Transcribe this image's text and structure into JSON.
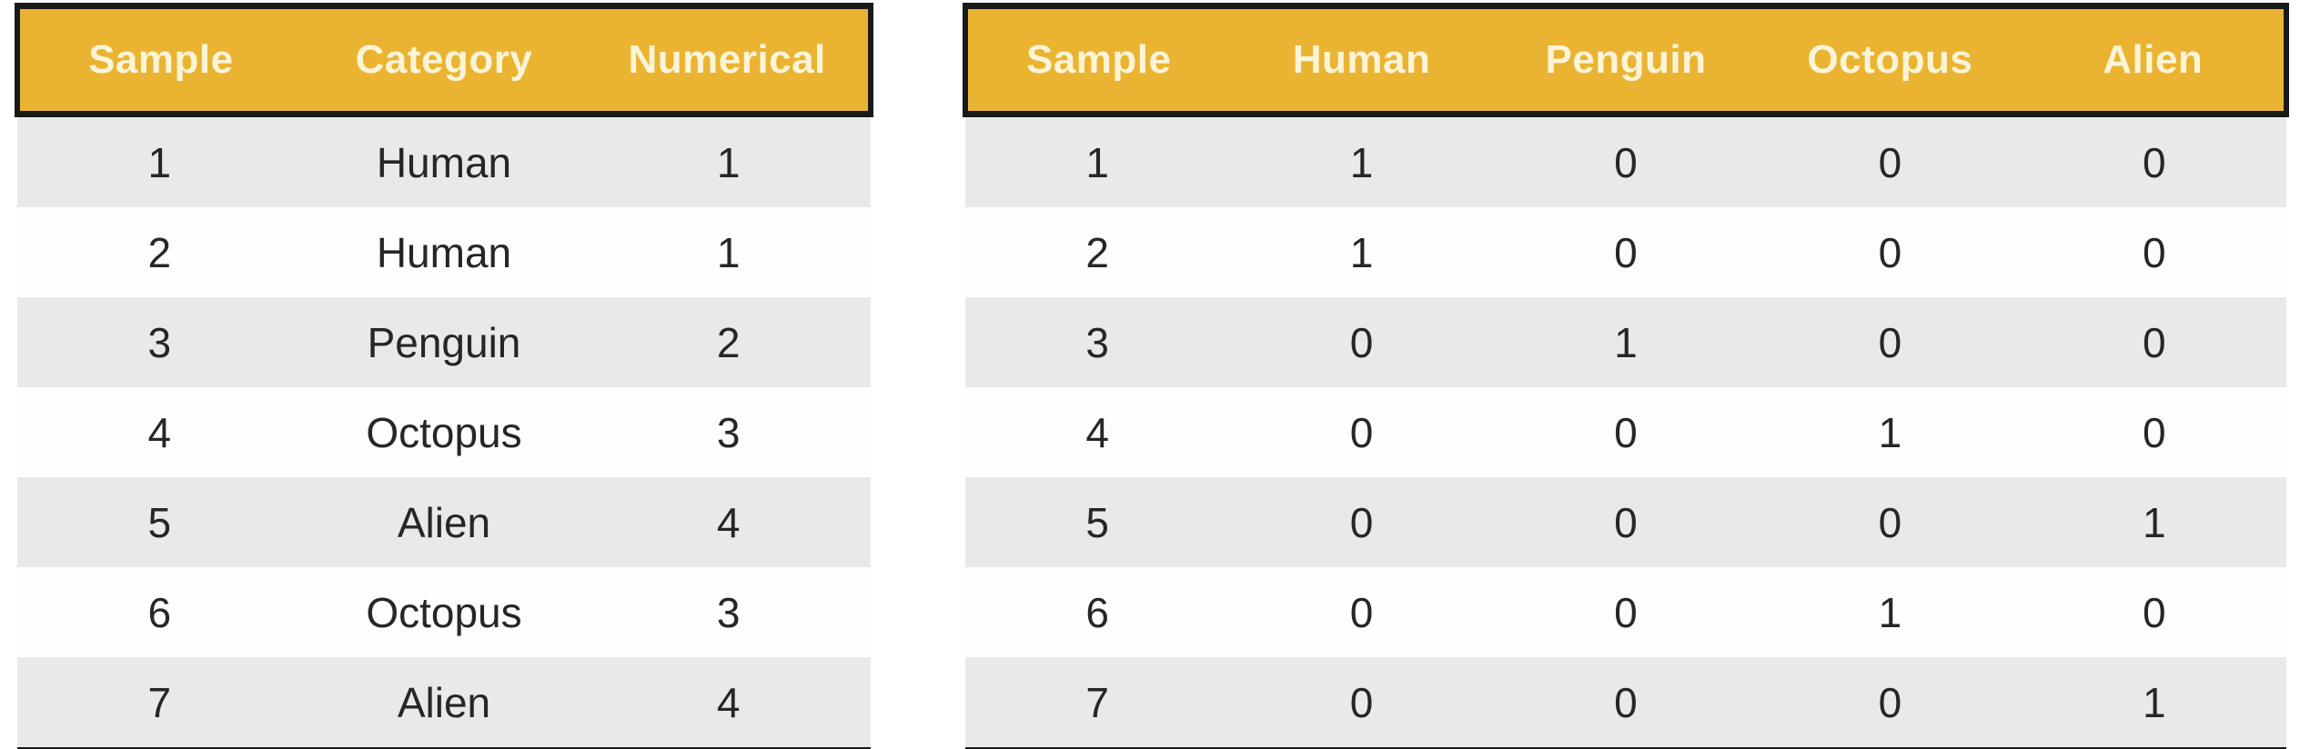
{
  "colors": {
    "page_bg": "#ffffff",
    "header_bg": "#EAB432",
    "header_text": "#FBF4D6",
    "row_alt": "#E9E8EA",
    "row_white": "#FDFDFD",
    "border": "#191919",
    "body_text": "#262626"
  },
  "tables": [
    {
      "id": "label-encoding-table",
      "headers": [
        "Sample",
        "Category",
        "Numerical"
      ],
      "rows": [
        [
          "1",
          "Human",
          "1"
        ],
        [
          "2",
          "Human",
          "1"
        ],
        [
          "3",
          "Penguin",
          "2"
        ],
        [
          "4",
          "Octopus",
          "3"
        ],
        [
          "5",
          "Alien",
          "4"
        ],
        [
          "6",
          "Octopus",
          "3"
        ],
        [
          "7",
          "Alien",
          "4"
        ]
      ]
    },
    {
      "id": "one-hot-encoding-table",
      "headers": [
        "Sample",
        "Human",
        "Penguin",
        "Octopus",
        "Alien"
      ],
      "rows": [
        [
          "1",
          "1",
          "0",
          "0",
          "0"
        ],
        [
          "2",
          "1",
          "0",
          "0",
          "0"
        ],
        [
          "3",
          "0",
          "1",
          "0",
          "0"
        ],
        [
          "4",
          "0",
          "0",
          "1",
          "0"
        ],
        [
          "5",
          "0",
          "0",
          "0",
          "1"
        ],
        [
          "6",
          "0",
          "0",
          "1",
          "0"
        ],
        [
          "7",
          "0",
          "0",
          "0",
          "1"
        ]
      ]
    }
  ]
}
